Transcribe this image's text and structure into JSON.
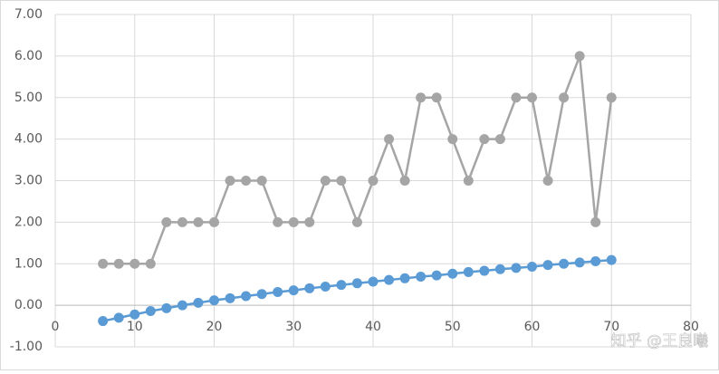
{
  "chart_data": {
    "type": "line",
    "x": [
      6,
      8,
      10,
      12,
      14,
      16,
      18,
      20,
      22,
      24,
      26,
      28,
      30,
      32,
      34,
      36,
      38,
      40,
      42,
      44,
      46,
      48,
      50,
      52,
      54,
      56,
      58,
      60,
      62,
      64,
      66,
      68,
      70
    ],
    "series": [
      {
        "color": "#5b9bd5",
        "values": [
          -0.38,
          -0.3,
          -0.22,
          -0.14,
          -0.07,
          0.0,
          0.06,
          0.12,
          0.17,
          0.22,
          0.27,
          0.32,
          0.36,
          0.41,
          0.45,
          0.49,
          0.53,
          0.57,
          0.61,
          0.65,
          0.69,
          0.72,
          0.76,
          0.8,
          0.83,
          0.87,
          0.9,
          0.93,
          0.97,
          1.0,
          1.03,
          1.06,
          1.09
        ]
      },
      {
        "color": "#a5a5a5",
        "values": [
          1,
          1,
          1,
          1,
          2,
          2,
          2,
          2,
          3,
          3,
          3,
          2,
          2,
          2,
          3,
          3,
          2,
          3,
          4,
          3,
          5,
          5,
          4,
          3,
          4,
          4,
          5,
          5,
          3,
          5,
          6,
          2,
          5
        ]
      }
    ],
    "xlim": [
      0,
      80
    ],
    "xticks": [
      0,
      10,
      20,
      30,
      40,
      50,
      60,
      70,
      80
    ],
    "ylim": [
      -1,
      7
    ],
    "yticks": [
      {
        "value": -1,
        "label": "-1.00"
      },
      {
        "value": 0,
        "label": "0.00"
      },
      {
        "value": 1,
        "label": "1.00"
      },
      {
        "value": 2,
        "label": "2.00"
      },
      {
        "value": 3,
        "label": "3.00"
      },
      {
        "value": 4,
        "label": "4.00"
      },
      {
        "value": 5,
        "label": "5.00"
      },
      {
        "value": 6,
        "label": "6.00"
      },
      {
        "value": 7,
        "label": "7.00"
      }
    ],
    "grid": true,
    "watermark": "知乎 @王良曦"
  }
}
